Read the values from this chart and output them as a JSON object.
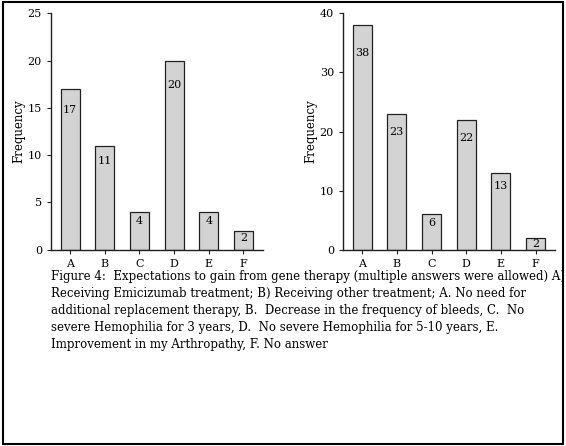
{
  "chart1": {
    "categories": [
      "A",
      "B",
      "C",
      "D",
      "E",
      "F"
    ],
    "values": [
      17,
      11,
      4,
      20,
      4,
      2
    ],
    "ylabel": "Frequency",
    "ylim": [
      0,
      25
    ],
    "yticks": [
      0,
      5,
      10,
      15,
      20,
      25
    ]
  },
  "chart2": {
    "categories": [
      "A",
      "B",
      "C",
      "D",
      "E",
      "F"
    ],
    "values": [
      38,
      23,
      6,
      22,
      13,
      2
    ],
    "ylabel": "Frequency",
    "ylim": [
      0,
      40
    ],
    "yticks": [
      0,
      10,
      20,
      30,
      40
    ]
  },
  "bar_color": "#d3d3d3",
  "bar_edgecolor": "#222222",
  "caption_bold": "Figure 4:",
  "caption_rest": "  Expectations to gain from gene therapy (multiple answers were allowed) A) Receiving Emicizumab treatment; B) Receiving other treatment; A. No need for additional replacement therapy, B.  Decrease in the frequency of bleeds, C.  No severe Hemophilia for 3 years, D.  No severe Hemophilia for 5-10 years, E.  Improvement in my Arthropathy, F. No answer",
  "caption_fontsize": 8.5,
  "label_fontsize": 8.5,
  "tick_fontsize": 8.0,
  "value_fontsize": 8.0
}
